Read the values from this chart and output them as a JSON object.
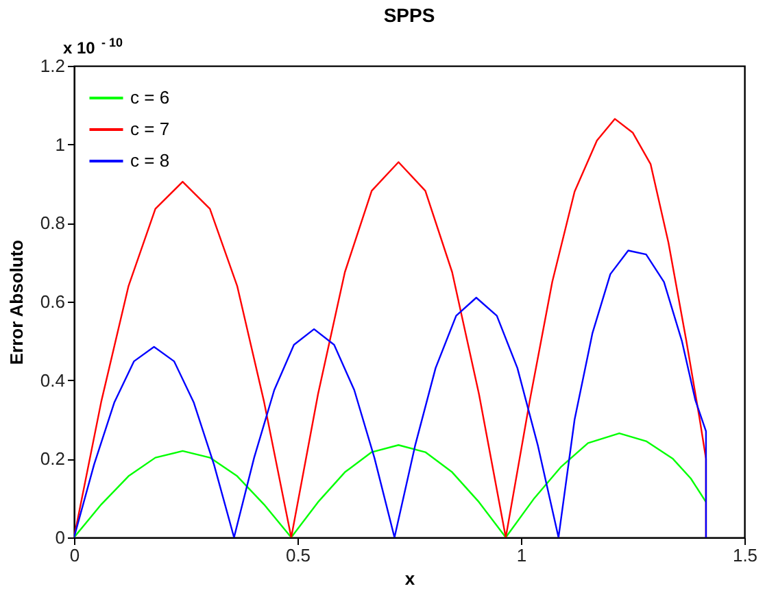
{
  "chart_data": {
    "type": "line",
    "title": "SPPS",
    "xlabel": "x",
    "ylabel": "Error Absoluto",
    "annotations": [
      "x 10$^{- 10}$"
    ],
    "xlim": [
      0,
      1.5
    ],
    "xticks": [
      0,
      0.5,
      1,
      1.5
    ],
    "ylim": [
      0,
      1.2
    ],
    "yticks": [
      0,
      0.2,
      0.4,
      0.6,
      0.8,
      1,
      1.2
    ],
    "grid": false,
    "legend": "top left",
    "marker": "none",
    "line_style": "solid",
    "series": [
      {
        "name": "c = 6",
        "color": "#00ff00",
        "x": [
          0,
          0.061,
          0.122,
          0.182,
          0.243,
          0.304,
          0.365,
          0.425,
          0.486,
          0.546,
          0.606,
          0.666,
          0.726,
          0.786,
          0.846,
          0.906,
          0.966,
          1.03,
          1.09,
          1.15,
          1.22,
          1.28,
          1.34,
          1.38,
          1.414
        ],
        "values": [
          0,
          0.084,
          0.156,
          0.203,
          0.22,
          0.203,
          0.156,
          0.084,
          0,
          0.09,
          0.166,
          0.217,
          0.235,
          0.217,
          0.166,
          0.09,
          0,
          0.1,
          0.18,
          0.24,
          0.265,
          0.245,
          0.2,
          0.15,
          0.09
        ]
      },
      {
        "name": "c = 7",
        "color": "#ff0000",
        "x": [
          0,
          0.061,
          0.122,
          0.182,
          0.243,
          0.304,
          0.365,
          0.425,
          0.486,
          0.546,
          0.606,
          0.666,
          0.726,
          0.786,
          0.846,
          0.906,
          0.966,
          1.02,
          1.07,
          1.12,
          1.17,
          1.21,
          1.25,
          1.29,
          1.33,
          1.37,
          1.4,
          1.414,
          1.414
        ],
        "values": [
          0,
          0.346,
          0.64,
          0.836,
          0.905,
          0.836,
          0.64,
          0.346,
          0,
          0.365,
          0.675,
          0.882,
          0.955,
          0.882,
          0.675,
          0.365,
          0,
          0.35,
          0.65,
          0.88,
          1.01,
          1.065,
          1.03,
          0.95,
          0.75,
          0.5,
          0.3,
          0.2,
          0
        ]
      },
      {
        "name": "c = 8",
        "color": "#0000ff",
        "x": [
          0,
          0.045,
          0.09,
          0.134,
          0.179,
          0.224,
          0.268,
          0.313,
          0.358,
          0.403,
          0.448,
          0.492,
          0.537,
          0.582,
          0.627,
          0.672,
          0.717,
          0.763,
          0.809,
          0.855,
          0.9,
          0.946,
          0.992,
          1.038,
          1.084,
          1.12,
          1.16,
          1.2,
          1.24,
          1.28,
          1.32,
          1.36,
          1.39,
          1.414,
          1.414
        ],
        "values": [
          0,
          0.186,
          0.343,
          0.448,
          0.485,
          0.448,
          0.343,
          0.186,
          0,
          0.203,
          0.375,
          0.49,
          0.53,
          0.49,
          0.375,
          0.203,
          0,
          0.233,
          0.431,
          0.564,
          0.61,
          0.564,
          0.431,
          0.233,
          0,
          0.3,
          0.52,
          0.67,
          0.73,
          0.72,
          0.65,
          0.5,
          0.35,
          0.27,
          0
        ]
      }
    ]
  }
}
